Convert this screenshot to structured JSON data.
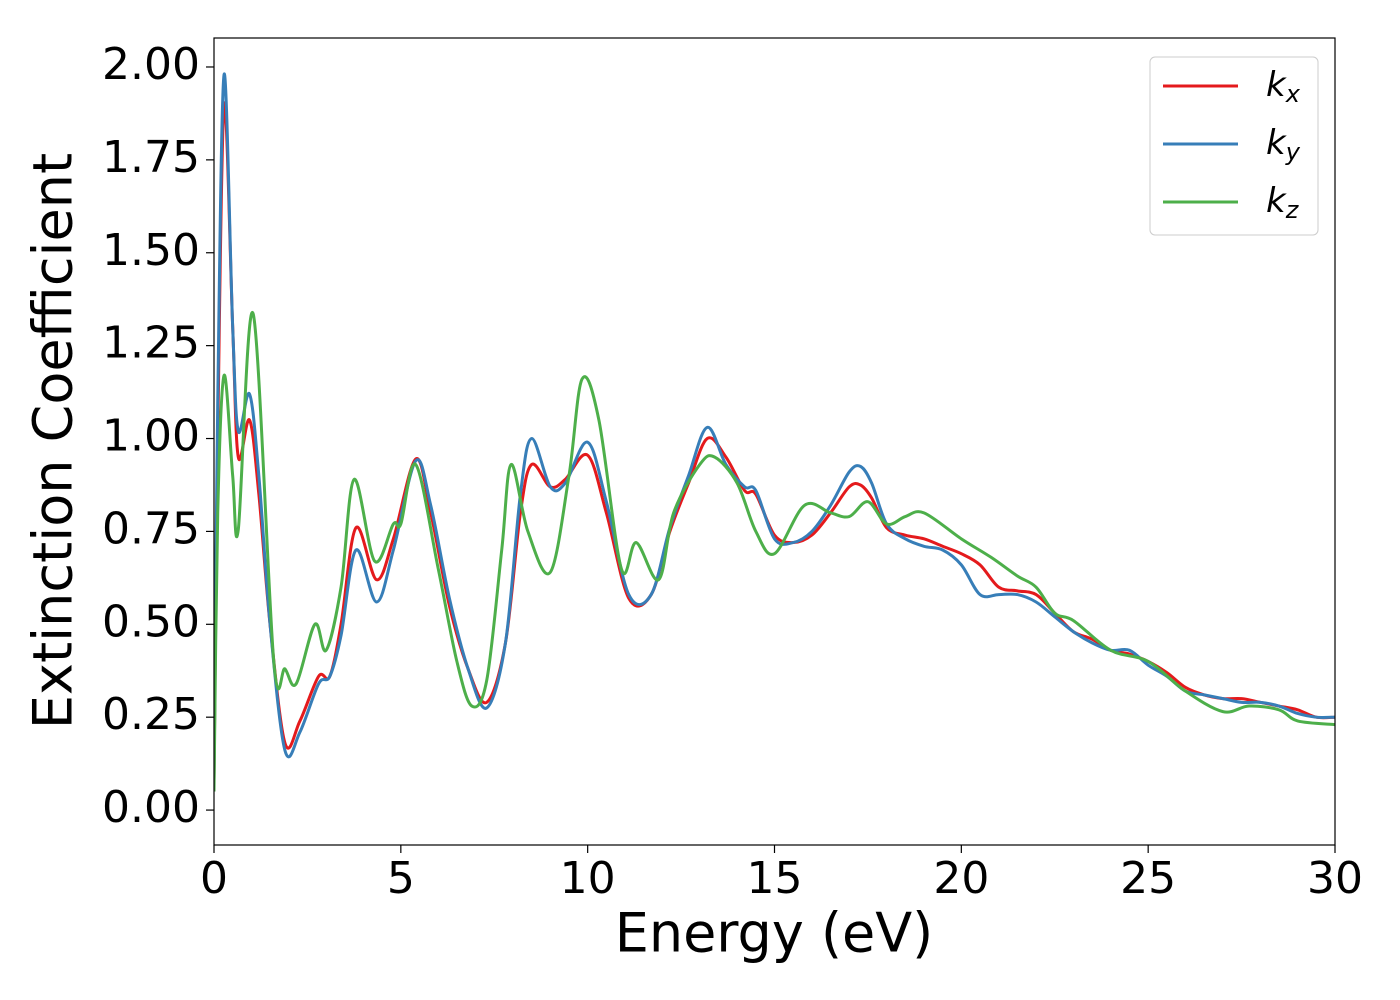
{
  "chart_data": {
    "type": "line",
    "xlabel": "Energy (eV)",
    "ylabel": "Extinction Coefficient",
    "xlim": [
      0,
      30
    ],
    "ylim": [
      -0.094,
      2.078
    ],
    "xticks": [
      0,
      5,
      10,
      15,
      20,
      25,
      30
    ],
    "yticks": [
      {
        "value": 0,
        "label": "0.00"
      },
      {
        "value": 0.25,
        "label": "0.25"
      },
      {
        "value": 0.5,
        "label": "0.50"
      },
      {
        "value": 0.75,
        "label": "0.75"
      },
      {
        "value": 1,
        "label": "1.00"
      },
      {
        "value": 1.25,
        "label": "1.25"
      },
      {
        "value": 1.5,
        "label": "1.50"
      },
      {
        "value": 1.75,
        "label": "1.75"
      },
      {
        "value": 2,
        "label": "2.00"
      }
    ],
    "legend": "upper right",
    "series": [
      {
        "name": "kx",
        "color": "#e41a1c",
        "x": [
          0,
          0.1,
          0.27,
          0.5,
          0.65,
          0.95,
          1.2,
          1.5,
          1.9,
          2.3,
          2.8,
          3.1,
          3.4,
          3.8,
          4.35,
          4.8,
          5.4,
          5.8,
          6.3,
          6.8,
          7.3,
          7.8,
          8.2,
          8.5,
          9,
          9.4,
          10,
          10.5,
          11.1,
          11.7,
          12.2,
          12.7,
          13.2,
          13.7,
          14.2,
          14.5,
          15,
          15.5,
          16,
          16.5,
          17,
          17.3,
          17.6,
          18,
          18.5,
          19,
          19.5,
          20,
          20.5,
          21,
          21.5,
          22,
          22.5,
          23,
          23.5,
          24,
          24.5,
          25,
          25.5,
          26,
          26.5,
          27,
          27.5,
          28,
          28.5,
          29,
          29.5,
          30
        ],
        "values": [
          0.08,
          1.0,
          1.9,
          1.3,
          0.95,
          1.05,
          0.85,
          0.5,
          0.18,
          0.24,
          0.36,
          0.36,
          0.5,
          0.76,
          0.62,
          0.73,
          0.945,
          0.8,
          0.55,
          0.38,
          0.29,
          0.45,
          0.8,
          0.93,
          0.87,
          0.89,
          0.955,
          0.8,
          0.57,
          0.58,
          0.75,
          0.88,
          1.0,
          0.95,
          0.86,
          0.85,
          0.74,
          0.72,
          0.74,
          0.8,
          0.87,
          0.875,
          0.84,
          0.76,
          0.74,
          0.73,
          0.71,
          0.69,
          0.66,
          0.6,
          0.59,
          0.58,
          0.53,
          0.48,
          0.46,
          0.43,
          0.42,
          0.4,
          0.37,
          0.33,
          0.31,
          0.3,
          0.3,
          0.29,
          0.28,
          0.27,
          0.25,
          0.25
        ]
      },
      {
        "name": "ky",
        "color": "#377eb8",
        "x": [
          0,
          0.1,
          0.27,
          0.5,
          0.65,
          0.95,
          1.2,
          1.5,
          1.9,
          2.3,
          2.8,
          3.1,
          3.4,
          3.8,
          4.35,
          4.8,
          5.4,
          5.8,
          6.3,
          6.8,
          7.3,
          7.8,
          8.2,
          8.5,
          9,
          9.4,
          10,
          10.5,
          11.1,
          11.7,
          12.2,
          12.7,
          13.2,
          13.7,
          14.2,
          14.5,
          15,
          15.5,
          16,
          16.5,
          17,
          17.3,
          17.6,
          18,
          18.5,
          19,
          19.5,
          20,
          20.5,
          21,
          21.5,
          22,
          22.5,
          23,
          23.5,
          24,
          24.5,
          25,
          25.5,
          26,
          26.5,
          27,
          27.5,
          28,
          28.5,
          29,
          29.5,
          30
        ],
        "values": [
          0.08,
          1.1,
          1.98,
          1.3,
          1.02,
          1.12,
          0.9,
          0.5,
          0.16,
          0.21,
          0.34,
          0.36,
          0.47,
          0.7,
          0.56,
          0.7,
          0.94,
          0.82,
          0.57,
          0.38,
          0.275,
          0.45,
          0.85,
          1.0,
          0.87,
          0.88,
          0.99,
          0.83,
          0.58,
          0.58,
          0.76,
          0.9,
          1.03,
          0.93,
          0.87,
          0.86,
          0.73,
          0.72,
          0.75,
          0.82,
          0.91,
          0.925,
          0.88,
          0.77,
          0.73,
          0.71,
          0.7,
          0.66,
          0.58,
          0.58,
          0.58,
          0.56,
          0.52,
          0.48,
          0.45,
          0.43,
          0.43,
          0.39,
          0.36,
          0.32,
          0.31,
          0.3,
          0.29,
          0.29,
          0.28,
          0.26,
          0.25,
          0.25
        ]
      },
      {
        "name": "kz",
        "color": "#4daf4a",
        "x": [
          0,
          0.1,
          0.27,
          0.5,
          0.65,
          1.05,
          1.6,
          1.9,
          2.2,
          2.7,
          3.0,
          3.4,
          3.75,
          4.3,
          4.8,
          5.0,
          5.4,
          6.0,
          6.5,
          6.9,
          7.3,
          7.7,
          7.95,
          8.4,
          9.0,
          9.5,
          9.85,
          10.3,
          10.9,
          11.3,
          11.9,
          12.3,
          13.0,
          13.4,
          14.0,
          14.5,
          15.0,
          15.8,
          16.5,
          17,
          17.5,
          18,
          18.5,
          19,
          20,
          20.8,
          21.5,
          22,
          22.5,
          23,
          24,
          25,
          26,
          27,
          27.7,
          28.5,
          29,
          30
        ],
        "values": [
          0.05,
          0.8,
          1.17,
          0.9,
          0.755,
          1.335,
          0.4,
          0.38,
          0.34,
          0.5,
          0.43,
          0.6,
          0.89,
          0.67,
          0.77,
          0.77,
          0.93,
          0.65,
          0.4,
          0.28,
          0.35,
          0.7,
          0.93,
          0.75,
          0.64,
          0.9,
          1.16,
          1.05,
          0.65,
          0.72,
          0.62,
          0.8,
          0.93,
          0.95,
          0.88,
          0.75,
          0.69,
          0.82,
          0.8,
          0.79,
          0.83,
          0.77,
          0.79,
          0.8,
          0.73,
          0.68,
          0.63,
          0.6,
          0.53,
          0.51,
          0.43,
          0.4,
          0.32,
          0.265,
          0.28,
          0.27,
          0.24,
          0.23
        ]
      }
    ]
  }
}
